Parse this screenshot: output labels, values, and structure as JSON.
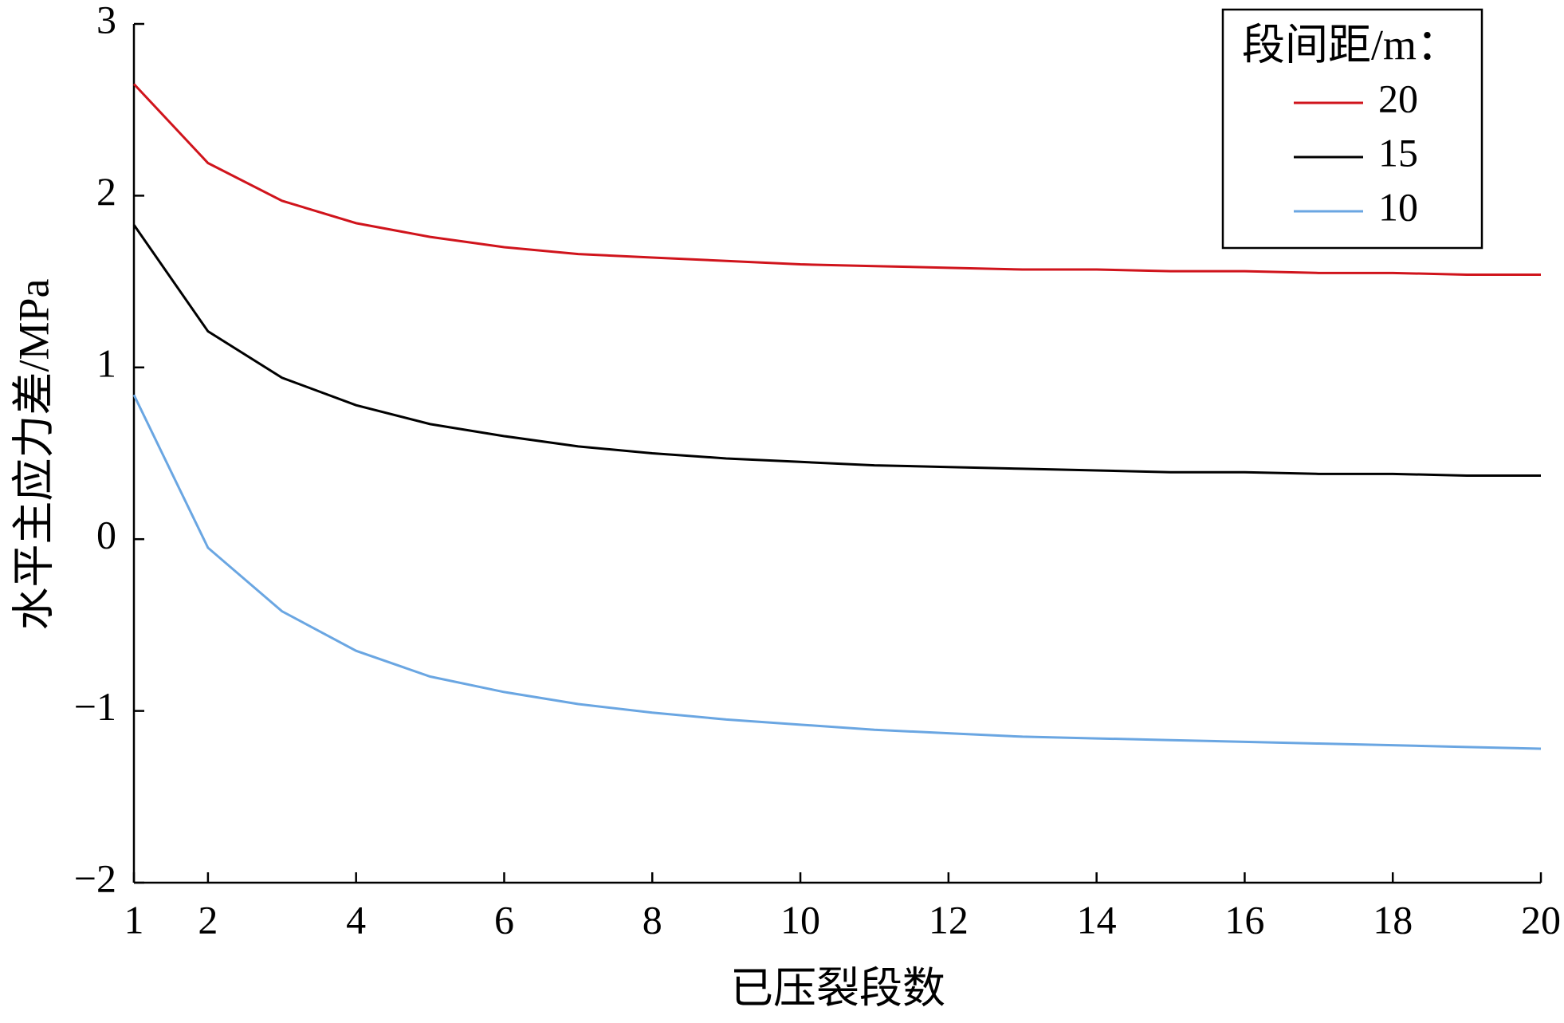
{
  "chart_data": {
    "type": "line",
    "xlabel": "已压裂段数",
    "ylabel": "水平主应力差/MPa",
    "x": [
      1,
      2,
      3,
      4,
      5,
      6,
      7,
      8,
      9,
      10,
      11,
      12,
      13,
      14,
      15,
      16,
      17,
      18,
      19,
      20
    ],
    "series": [
      {
        "name": "20",
        "color": "#d0141c",
        "values": [
          2.65,
          2.19,
          1.97,
          1.84,
          1.76,
          1.7,
          1.66,
          1.64,
          1.62,
          1.6,
          1.59,
          1.58,
          1.57,
          1.57,
          1.56,
          1.56,
          1.55,
          1.55,
          1.54,
          1.54
        ]
      },
      {
        "name": "15",
        "color": "#000000",
        "values": [
          1.83,
          1.21,
          0.94,
          0.78,
          0.67,
          0.6,
          0.54,
          0.5,
          0.47,
          0.45,
          0.43,
          0.42,
          0.41,
          0.4,
          0.39,
          0.39,
          0.38,
          0.38,
          0.37,
          0.37
        ]
      },
      {
        "name": "10",
        "color": "#6aa6e2",
        "values": [
          0.84,
          -0.05,
          -0.42,
          -0.65,
          -0.8,
          -0.89,
          -0.96,
          -1.01,
          -1.05,
          -1.08,
          -1.11,
          -1.13,
          -1.15,
          -1.16,
          -1.17,
          -1.18,
          -1.19,
          -1.2,
          -1.21,
          -1.22
        ]
      }
    ],
    "legend_title": "段间距/m：",
    "legend": "upper right",
    "xlim": [
      1,
      20
    ],
    "xticks": [
      1,
      2,
      4,
      6,
      8,
      10,
      12,
      14,
      16,
      18,
      20
    ],
    "ylim": [
      -2,
      3
    ],
    "yticks": [
      {
        "value": -2,
        "label": "−2"
      },
      {
        "value": -1,
        "label": "−1"
      },
      0,
      1,
      2,
      3
    ],
    "grid": false
  }
}
